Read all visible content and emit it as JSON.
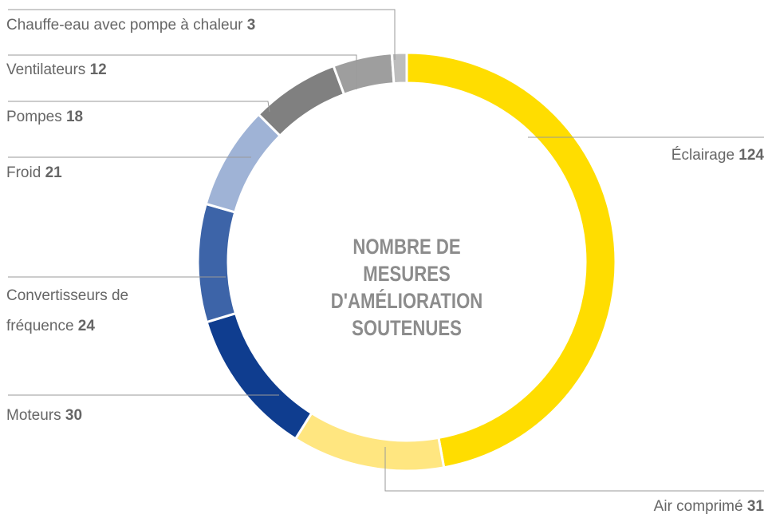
{
  "chart_data": {
    "type": "donut",
    "title": "NOMBRE DE MESURES D'AMÉLIORATION SOUTENUES",
    "categories": [
      "Éclairage",
      "Air comprimé",
      "Moteurs",
      "Convertisseurs de fréquence",
      "Froid",
      "Pompes",
      "Ventilateurs",
      "Chauffe-eau avec pompe à chaleur"
    ],
    "values": [
      124,
      31,
      30,
      24,
      21,
      18,
      12,
      3
    ],
    "colors": [
      "#ffdd00",
      "#ffe680",
      "#0f3d8f",
      "#3d64a8",
      "#9fb3d6",
      "#808080",
      "#9e9e9e",
      "#bdbdbd"
    ]
  }
}
